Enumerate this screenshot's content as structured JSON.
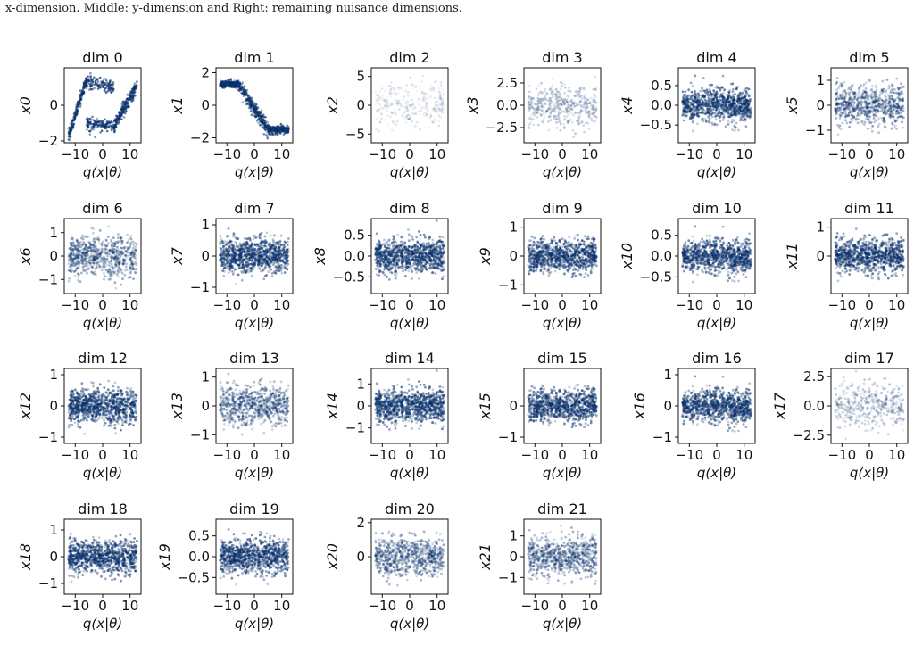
{
  "caption": "x-dimension. Middle: y-dimension and Right: remaining nuisance dimensions.",
  "colors": {
    "density_dark": "#08306b",
    "density_light": "#deebf7",
    "frame": "#111111"
  },
  "chart_data": [
    {
      "type": "heatmap",
      "title": "dim 0",
      "ylabel": "x0",
      "xlabel": "q(x|θ)",
      "x_ticks": [
        "−10",
        "0",
        "10"
      ],
      "y_ticks": [
        "0",
        "−2"
      ],
      "xlim": [
        -14,
        14
      ],
      "ylim": [
        -2.1,
        2.1
      ],
      "pattern": "dim0"
    },
    {
      "type": "heatmap",
      "title": "dim 1",
      "ylabel": "x1",
      "xlabel": "q(x|θ)",
      "x_ticks": [
        "−10",
        "0",
        "10"
      ],
      "y_ticks": [
        "2",
        "0",
        "−2"
      ],
      "xlim": [
        -14,
        14
      ],
      "ylim": [
        -2.3,
        2.3
      ],
      "pattern": "dim1"
    },
    {
      "type": "heatmap",
      "title": "dim 2",
      "ylabel": "x2",
      "xlabel": "q(x|θ)",
      "x_ticks": [
        "−10",
        "0",
        "10"
      ],
      "y_ticks": [
        "5",
        "0",
        "−5"
      ],
      "xlim": [
        -14,
        14
      ],
      "ylim": [
        -6.5,
        6.5
      ],
      "pattern": "faint"
    },
    {
      "type": "heatmap",
      "title": "dim 3",
      "ylabel": "x3",
      "xlabel": "q(x|θ)",
      "x_ticks": [
        "−10",
        "0",
        "10"
      ],
      "y_ticks": [
        "2.5",
        "0.0",
        "−2.5"
      ],
      "xlim": [
        -14,
        14
      ],
      "ylim": [
        -4.2,
        4.2
      ],
      "pattern": "light"
    },
    {
      "type": "heatmap",
      "title": "dim 4",
      "ylabel": "x4",
      "xlabel": "q(x|θ)",
      "x_ticks": [
        "−10",
        "0",
        "10"
      ],
      "y_ticks": [
        "0.5",
        "0.0",
        "−0.5"
      ],
      "xlim": [
        -14,
        14
      ],
      "ylim": [
        -0.95,
        0.95
      ],
      "pattern": "dense"
    },
    {
      "type": "heatmap",
      "title": "dim 5",
      "ylabel": "x5",
      "xlabel": "q(x|θ)",
      "x_ticks": [
        "−10",
        "0",
        "10"
      ],
      "y_ticks": [
        "1",
        "0",
        "−1"
      ],
      "xlim": [
        -14,
        14
      ],
      "ylim": [
        -1.5,
        1.5
      ],
      "pattern": "medium"
    },
    {
      "type": "heatmap",
      "title": "dim 6",
      "ylabel": "x6",
      "xlabel": "q(x|θ)",
      "x_ticks": [
        "−10",
        "0",
        "10"
      ],
      "y_ticks": [
        "1",
        "0",
        "−1"
      ],
      "xlim": [
        -14,
        14
      ],
      "ylim": [
        -1.6,
        1.6
      ],
      "pattern": "medium"
    },
    {
      "type": "heatmap",
      "title": "dim 7",
      "ylabel": "x7",
      "xlabel": "q(x|θ)",
      "x_ticks": [
        "−10",
        "0",
        "10"
      ],
      "y_ticks": [
        "1",
        "0",
        "−1"
      ],
      "xlim": [
        -14,
        14
      ],
      "ylim": [
        -1.2,
        1.2
      ],
      "pattern": "dense"
    },
    {
      "type": "heatmap",
      "title": "dim 8",
      "ylabel": "x8",
      "xlabel": "q(x|θ)",
      "x_ticks": [
        "−10",
        "0",
        "10"
      ],
      "y_ticks": [
        "0.5",
        "0.0",
        "−0.5"
      ],
      "xlim": [
        -14,
        14
      ],
      "ylim": [
        -0.9,
        0.9
      ],
      "pattern": "dense"
    },
    {
      "type": "heatmap",
      "title": "dim 9",
      "ylabel": "x9",
      "xlabel": "q(x|θ)",
      "x_ticks": [
        "−10",
        "0",
        "10"
      ],
      "y_ticks": [
        "1",
        "0",
        "−1"
      ],
      "xlim": [
        -14,
        14
      ],
      "ylim": [
        -1.3,
        1.3
      ],
      "pattern": "dense"
    },
    {
      "type": "heatmap",
      "title": "dim 10",
      "ylabel": "x10",
      "xlabel": "q(x|θ)",
      "x_ticks": [
        "−10",
        "0",
        "10"
      ],
      "y_ticks": [
        "0.5",
        "0.0",
        "−0.5"
      ],
      "xlim": [
        -14,
        14
      ],
      "ylim": [
        -0.9,
        0.9
      ],
      "pattern": "dense"
    },
    {
      "type": "heatmap",
      "title": "dim 11",
      "ylabel": "x11",
      "xlabel": "q(x|θ)",
      "x_ticks": [
        "−10",
        "0",
        "10"
      ],
      "y_ticks": [
        "1",
        "0"
      ],
      "xlim": [
        -14,
        14
      ],
      "ylim": [
        -1.3,
        1.3
      ],
      "pattern": "dense"
    },
    {
      "type": "heatmap",
      "title": "dim 12",
      "ylabel": "x12",
      "xlabel": "q(x|θ)",
      "x_ticks": [
        "−10",
        "0",
        "10"
      ],
      "y_ticks": [
        "1",
        "0",
        "−1"
      ],
      "xlim": [
        -14,
        14
      ],
      "ylim": [
        -1.2,
        1.2
      ],
      "pattern": "dense"
    },
    {
      "type": "heatmap",
      "title": "dim 13",
      "ylabel": "x13",
      "xlabel": "q(x|θ)",
      "x_ticks": [
        "−10",
        "0",
        "10"
      ],
      "y_ticks": [
        "1",
        "0",
        "−1"
      ],
      "xlim": [
        -14,
        14
      ],
      "ylim": [
        -1.3,
        1.3
      ],
      "pattern": "medium"
    },
    {
      "type": "heatmap",
      "title": "dim 14",
      "ylabel": "x14",
      "xlabel": "q(x|θ)",
      "x_ticks": [
        "−10",
        "0",
        "10"
      ],
      "y_ticks": [
        "1",
        "0",
        "−1"
      ],
      "xlim": [
        -14,
        14
      ],
      "ylim": [
        -1.7,
        1.7
      ],
      "pattern": "dense"
    },
    {
      "type": "heatmap",
      "title": "dim 15",
      "ylabel": "x15",
      "xlabel": "q(x|θ)",
      "x_ticks": [
        "−10",
        "0",
        "10"
      ],
      "y_ticks": [
        "0",
        "−1"
      ],
      "xlim": [
        -14,
        14
      ],
      "ylim": [
        -1.2,
        1.2
      ],
      "pattern": "dense"
    },
    {
      "type": "heatmap",
      "title": "dim 16",
      "ylabel": "x16",
      "xlabel": "q(x|θ)",
      "x_ticks": [
        "−10",
        "0",
        "10"
      ],
      "y_ticks": [
        "1",
        "0",
        "−1"
      ],
      "xlim": [
        -14,
        14
      ],
      "ylim": [
        -1.2,
        1.2
      ],
      "pattern": "dense"
    },
    {
      "type": "heatmap",
      "title": "dim 17",
      "ylabel": "x17",
      "xlabel": "q(x|θ)",
      "x_ticks": [
        "−10",
        "0",
        "10"
      ],
      "y_ticks": [
        "2.5",
        "0.0",
        "−2.5"
      ],
      "xlim": [
        -14,
        14
      ],
      "ylim": [
        -3.2,
        3.2
      ],
      "pattern": "light"
    },
    {
      "type": "heatmap",
      "title": "dim 18",
      "ylabel": "x18",
      "xlabel": "q(x|θ)",
      "x_ticks": [
        "−10",
        "0",
        "10"
      ],
      "y_ticks": [
        "1",
        "0",
        "−1"
      ],
      "xlim": [
        -14,
        14
      ],
      "ylim": [
        -1.4,
        1.4
      ],
      "pattern": "dense"
    },
    {
      "type": "heatmap",
      "title": "dim 19",
      "ylabel": "x19",
      "xlabel": "q(x|θ)",
      "x_ticks": [
        "−10",
        "0",
        "10"
      ],
      "y_ticks": [
        "0.5",
        "0.0",
        "−0.5"
      ],
      "xlim": [
        -14,
        14
      ],
      "ylim": [
        -0.9,
        0.9
      ],
      "pattern": "dense"
    },
    {
      "type": "heatmap",
      "title": "dim 20",
      "ylabel": "x20",
      "xlabel": "q(x|θ)",
      "x_ticks": [
        "−10",
        "0",
        "10"
      ],
      "y_ticks": [
        "2",
        "0"
      ],
      "xlim": [
        -14,
        14
      ],
      "ylim": [
        -2.2,
        2.2
      ],
      "pattern": "medium"
    },
    {
      "type": "heatmap",
      "title": "dim 21",
      "ylabel": "x21",
      "xlabel": "q(x|θ)",
      "x_ticks": [
        "−10",
        "0",
        "10"
      ],
      "y_ticks": [
        "1",
        "0",
        "−1"
      ],
      "xlim": [
        -14,
        14
      ],
      "ylim": [
        -1.8,
        1.8
      ],
      "pattern": "medium"
    }
  ]
}
